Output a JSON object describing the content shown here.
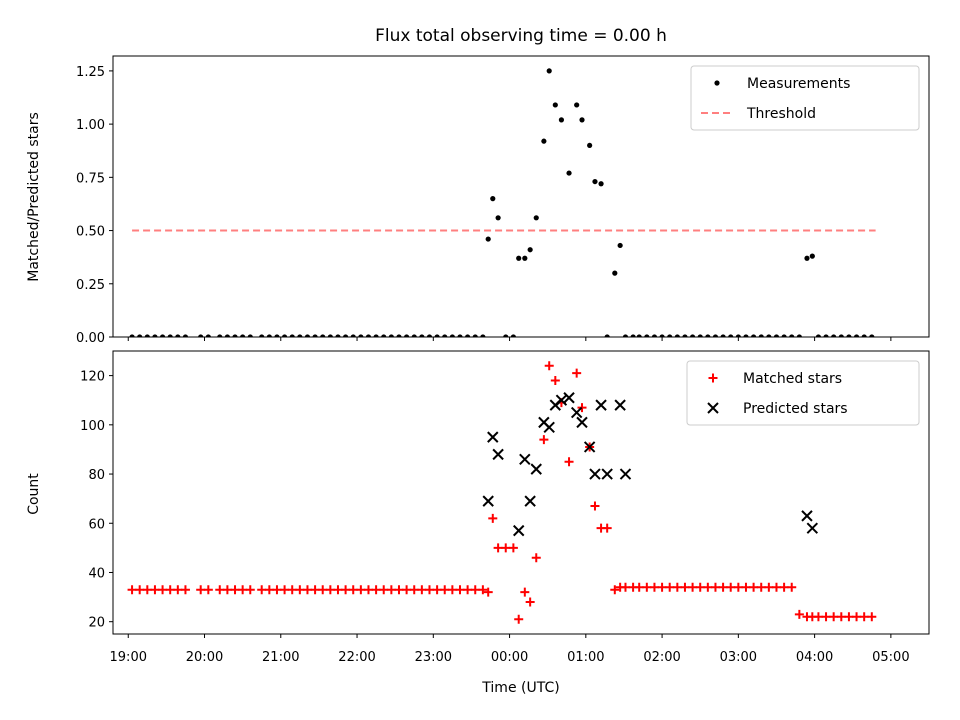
{
  "chart_data": [
    {
      "type": "scatter",
      "title": "Flux total observing time = 0.00 h",
      "xlabel": "",
      "ylabel": "Matched/Predicted stars",
      "xlim": [
        18.8,
        29.5
      ],
      "ylim": [
        0.0,
        1.32
      ],
      "yticks": [
        0.0,
        0.25,
        0.5,
        0.75,
        1.0,
        1.25
      ],
      "ytick_labels": [
        "0.00",
        "0.25",
        "0.50",
        "0.75",
        "1.00",
        "1.25"
      ],
      "legend_position": "top-right",
      "series": [
        {
          "name": "Measurements",
          "marker": "dot",
          "color": "#000000",
          "x": [
            19.05,
            19.15,
            19.25,
            19.35,
            19.45,
            19.55,
            19.65,
            19.75,
            19.95,
            20.05,
            20.2,
            20.3,
            20.4,
            20.5,
            20.6,
            20.75,
            20.85,
            20.95,
            21.05,
            21.15,
            21.25,
            21.35,
            21.45,
            21.55,
            21.65,
            21.75,
            21.85,
            21.95,
            22.05,
            22.15,
            22.25,
            22.35,
            22.45,
            22.55,
            22.65,
            22.75,
            22.85,
            22.95,
            23.05,
            23.15,
            23.25,
            23.35,
            23.45,
            23.55,
            23.65,
            23.72,
            23.78,
            23.85,
            23.95,
            24.05,
            24.12,
            24.2,
            24.27,
            24.35,
            24.45,
            24.52,
            24.6,
            24.68,
            24.78,
            24.88,
            24.95,
            25.05,
            25.12,
            25.2,
            25.28,
            25.38,
            25.45,
            25.52,
            25.62,
            25.7,
            25.8,
            25.9,
            26.0,
            26.1,
            26.2,
            26.3,
            26.4,
            26.5,
            26.6,
            26.7,
            26.8,
            26.9,
            27.0,
            27.1,
            27.2,
            27.3,
            27.4,
            27.5,
            27.6,
            27.7,
            27.8,
            27.9,
            27.97,
            28.05,
            28.15,
            28.25,
            28.35,
            28.45,
            28.55,
            28.65,
            28.75
          ],
          "y": [
            0,
            0,
            0,
            0,
            0,
            0,
            0,
            0,
            0,
            0,
            0,
            0,
            0,
            0,
            0,
            0,
            0,
            0,
            0,
            0,
            0,
            0,
            0,
            0,
            0,
            0,
            0,
            0,
            0,
            0,
            0,
            0,
            0,
            0,
            0,
            0,
            0,
            0,
            0,
            0,
            0,
            0,
            0,
            0,
            0,
            0.46,
            0.65,
            0.56,
            0,
            0,
            0.37,
            0.37,
            0.41,
            0.56,
            0.92,
            1.25,
            1.09,
            1.02,
            0.77,
            1.09,
            1.02,
            0.9,
            0.73,
            0.72,
            0,
            0.3,
            0.43,
            0,
            0,
            0,
            0,
            0,
            0,
            0,
            0,
            0,
            0,
            0,
            0,
            0,
            0,
            0,
            0,
            0,
            0,
            0,
            0,
            0,
            0,
            0,
            0,
            0.37,
            0.38,
            0,
            0,
            0,
            0,
            0,
            0,
            0,
            0
          ]
        },
        {
          "name": "Threshold",
          "marker": "dashed-line",
          "color": "#ff7f7f",
          "x": [
            19.05,
            28.8
          ],
          "y": [
            0.5,
            0.5
          ]
        }
      ]
    },
    {
      "type": "scatter",
      "title": "",
      "xlabel": "Time (UTC)",
      "ylabel": "Count",
      "xlim": [
        18.8,
        29.5
      ],
      "ylim": [
        15,
        130
      ],
      "yticks": [
        20,
        40,
        60,
        80,
        100,
        120
      ],
      "ytick_labels": [
        "20",
        "40",
        "60",
        "80",
        "100",
        "120"
      ],
      "xticks": [
        19,
        20,
        21,
        22,
        23,
        24,
        25,
        26,
        27,
        28,
        29
      ],
      "xtick_labels": [
        "19:00",
        "20:00",
        "21:00",
        "22:00",
        "23:00",
        "00:00",
        "01:00",
        "02:00",
        "03:00",
        "04:00",
        "05:00"
      ],
      "legend_position": "top-right",
      "series": [
        {
          "name": "Matched stars",
          "marker": "plus",
          "color": "#ff0000",
          "x": [
            19.05,
            19.15,
            19.25,
            19.35,
            19.45,
            19.55,
            19.65,
            19.75,
            19.95,
            20.05,
            20.2,
            20.3,
            20.4,
            20.5,
            20.6,
            20.75,
            20.85,
            20.95,
            21.05,
            21.15,
            21.25,
            21.35,
            21.45,
            21.55,
            21.65,
            21.75,
            21.85,
            21.95,
            22.05,
            22.15,
            22.25,
            22.35,
            22.45,
            22.55,
            22.65,
            22.75,
            22.85,
            22.95,
            23.05,
            23.15,
            23.25,
            23.35,
            23.45,
            23.55,
            23.65,
            23.72,
            23.78,
            23.85,
            23.95,
            24.05,
            24.12,
            24.2,
            24.27,
            24.35,
            24.45,
            24.52,
            24.6,
            24.68,
            24.78,
            24.88,
            24.95,
            25.05,
            25.12,
            25.2,
            25.28,
            25.38,
            25.45,
            25.52,
            25.62,
            25.7,
            25.8,
            25.9,
            26.0,
            26.1,
            26.2,
            26.3,
            26.4,
            26.5,
            26.6,
            26.7,
            26.8,
            26.9,
            27.0,
            27.1,
            27.2,
            27.3,
            27.4,
            27.5,
            27.6,
            27.7,
            27.8,
            27.9,
            27.97,
            28.05,
            28.15,
            28.25,
            28.35,
            28.45,
            28.55,
            28.65,
            28.75
          ],
          "y": [
            33,
            33,
            33,
            33,
            33,
            33,
            33,
            33,
            33,
            33,
            33,
            33,
            33,
            33,
            33,
            33,
            33,
            33,
            33,
            33,
            33,
            33,
            33,
            33,
            33,
            33,
            33,
            33,
            33,
            33,
            33,
            33,
            33,
            33,
            33,
            33,
            33,
            33,
            33,
            33,
            33,
            33,
            33,
            33,
            33,
            32,
            62,
            50,
            50,
            50,
            21,
            32,
            28,
            46,
            94,
            124,
            118,
            109,
            85,
            121,
            107,
            91,
            67,
            58,
            58,
            33,
            34,
            34,
            34,
            34,
            34,
            34,
            34,
            34,
            34,
            34,
            34,
            34,
            34,
            34,
            34,
            34,
            34,
            34,
            34,
            34,
            34,
            34,
            34,
            34,
            23,
            22,
            22,
            22,
            22,
            22,
            22,
            22,
            22,
            22,
            22
          ]
        },
        {
          "name": "Predicted stars",
          "marker": "x",
          "color": "#000000",
          "x": [
            23.72,
            23.78,
            23.85,
            24.12,
            24.2,
            24.27,
            24.35,
            24.45,
            24.52,
            24.6,
            24.68,
            24.78,
            24.88,
            24.95,
            25.05,
            25.12,
            25.2,
            25.28,
            25.45,
            25.52,
            27.9,
            27.97
          ],
          "y": [
            69,
            95,
            88,
            57,
            86,
            69,
            82,
            101,
            99,
            108,
            110,
            111,
            105,
            101,
            91,
            80,
            108,
            80,
            108,
            80,
            63,
            58
          ]
        }
      ]
    }
  ]
}
